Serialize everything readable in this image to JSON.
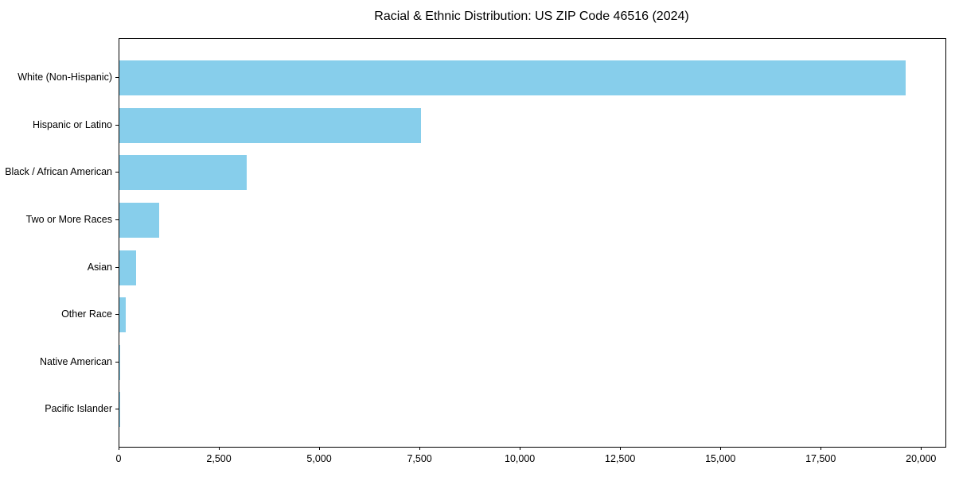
{
  "chart_data": {
    "type": "bar",
    "orientation": "horizontal",
    "title": "Racial & Ethnic Distribution: US ZIP Code 46516 (2024)",
    "categories": [
      "White (Non-Hispanic)",
      "Hispanic or Latino",
      "Black / African American",
      "Two or More Races",
      "Asian",
      "Other Race",
      "Native American",
      "Pacific Islander"
    ],
    "values": [
      19590,
      7520,
      3180,
      990,
      415,
      155,
      15,
      5
    ],
    "xlabel": "",
    "ylabel": "",
    "xlim": [
      0,
      20590
    ],
    "xticks": [
      0,
      2500,
      5000,
      7500,
      10000,
      12500,
      15000,
      17500,
      20000
    ],
    "xtick_labels": [
      "0",
      "2,500",
      "5,000",
      "7,500",
      "10,000",
      "12,500",
      "15,000",
      "17,500",
      "20,000"
    ],
    "grid": false,
    "legend": null,
    "colors": {
      "bar": "#87CEEB",
      "text": "#000000",
      "spine": "#000000",
      "background": "#ffffff"
    }
  }
}
